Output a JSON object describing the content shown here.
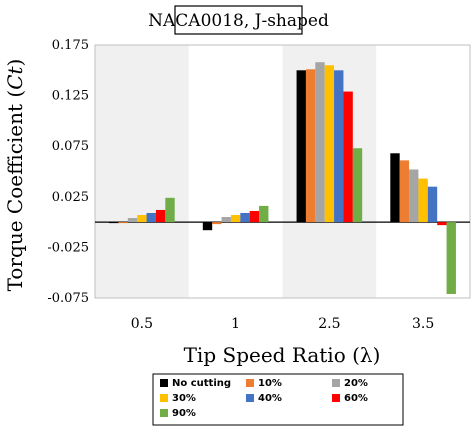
{
  "chart_data": {
    "type": "bar",
    "title": "NACA0018, J-shaped",
    "xlabel": "Tip Speed Ratio (λ)",
    "ylabel": "Torque Coefficient (",
    "ylabel_symbol": "Ct",
    "ylabel_close": ")",
    "categories": [
      "0.5",
      "1",
      "2.5",
      "3.5"
    ],
    "ylim": [
      -0.075,
      0.175
    ],
    "yticks": [
      -0.075,
      -0.025,
      0.025,
      0.075,
      0.125,
      0.175
    ],
    "ytick_labels": [
      "-0.075",
      "-0.025",
      "0.025",
      "0.075",
      "0.125",
      "0.175"
    ],
    "shaded_categories": [
      "0.5",
      "2.5"
    ],
    "shade_color": "#f0f0f0",
    "legend_position": "bottom",
    "series": [
      {
        "name": "No cutting",
        "color": "#000000",
        "values": [
          -0.001,
          -0.008,
          0.15,
          0.068
        ]
      },
      {
        "name": "10%",
        "color": "#ed7d31",
        "values": [
          -0.001,
          -0.002,
          0.151,
          0.061
        ]
      },
      {
        "name": "20%",
        "color": "#a5a5a5",
        "values": [
          0.004,
          0.005,
          0.158,
          0.052
        ]
      },
      {
        "name": "30%",
        "color": "#ffc000",
        "values": [
          0.007,
          0.007,
          0.155,
          0.043
        ]
      },
      {
        "name": "40%",
        "color": "#4472c4",
        "values": [
          0.009,
          0.009,
          0.15,
          0.035
        ]
      },
      {
        "name": "60%",
        "color": "#ff0000",
        "values": [
          0.012,
          0.011,
          0.129,
          -0.003
        ]
      },
      {
        "name": "90%",
        "color": "#70ad47",
        "values": [
          0.024,
          0.016,
          0.073,
          -0.071
        ]
      }
    ]
  }
}
